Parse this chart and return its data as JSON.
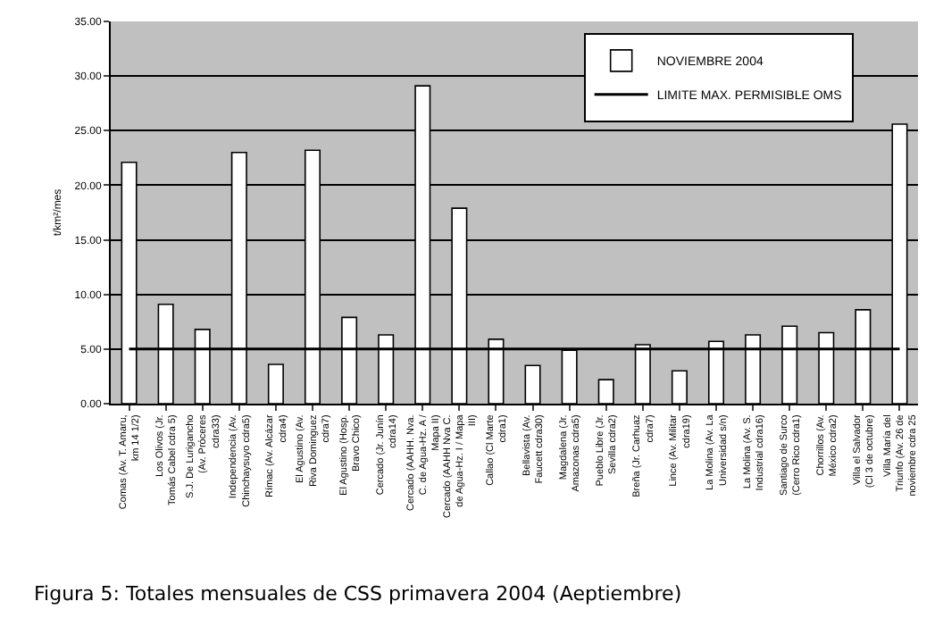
{
  "chart_data": {
    "type": "bar",
    "ylabel": "t/km²/mes",
    "categories": [
      "Comas (Av. T. Amaru, km 14 1/2)",
      "Los Olivos (Jr. Tomás Cabel cdra 5)",
      "S.J. De Lurigancho (Av. Próceres cdra33)",
      "Independencia (Av. Chinchaysuyo cdra5)",
      "Rímac (Av. Alcázar cdra4)",
      "El Agustino (Av. Riva Dominguez cdra7)",
      "El Agustino (Hosp. Bravo Chico)",
      "Cercado (Jr. Junín cdra14)",
      "Cercado (AAHH. Nva. C. de Agua-Hz. A / Mapa II)",
      "Cercado (AAHH Nva C. de Agua-Hz. I / Mapa III)",
      "Callao (Cl Marte cdra1)",
      "Bellavista (Av. Faucett cdra30)",
      "Magdalena (Jr. Amazonas cdra5)",
      "Pueblo Libre (Jr. Sevilla cdra2)",
      "Breña (Jr. Carhuaz cdra7)",
      "Lince (Av. Militar cdra19)",
      "La Molina (Av. La Universidad s/n)",
      "La Molina (Av. S. Industrial cdra16)",
      "Santiago de Surco (Cerro Rico cdra1)",
      "Chorrillos (Av. México cdra2)",
      "Villa el Salvador (Cl 3 de octubre)",
      "Villa María del Triunfo (Av. 26 de noviembre cdra 25"
    ],
    "series": [
      {
        "name": "NOVIEMBRE 2004",
        "color": "#ffffff",
        "values": [
          22.1,
          9.1,
          6.8,
          23.0,
          3.6,
          23.2,
          7.9,
          6.3,
          29.1,
          17.9,
          5.9,
          3.5,
          4.9,
          2.2,
          5.4,
          3.0,
          5.7,
          6.3,
          7.1,
          6.5,
          8.6,
          25.6
        ]
      }
    ],
    "ref_lines": [
      {
        "axis": "y",
        "value": 5,
        "label": "LIMITE MAX. PERMISIBLE OMS",
        "color": "#000000"
      }
    ],
    "ylim": [
      0,
      35
    ],
    "yticks": [
      {
        "value": 0,
        "label": "0.00"
      },
      {
        "value": 5,
        "label": "5.00"
      },
      {
        "value": 10,
        "label": "10.00"
      },
      {
        "value": 15,
        "label": "15.00"
      },
      {
        "value": 20,
        "label": "20.00"
      },
      {
        "value": 25,
        "label": "25.00"
      },
      {
        "value": 30,
        "label": "30.00"
      },
      {
        "value": 35,
        "label": "35.00"
      }
    ],
    "grid": "y",
    "legend": "top right",
    "annotations": [
      "Figura 5: Totales mensuales de CSS primavera 2004 (Aeptiembre)"
    ]
  }
}
